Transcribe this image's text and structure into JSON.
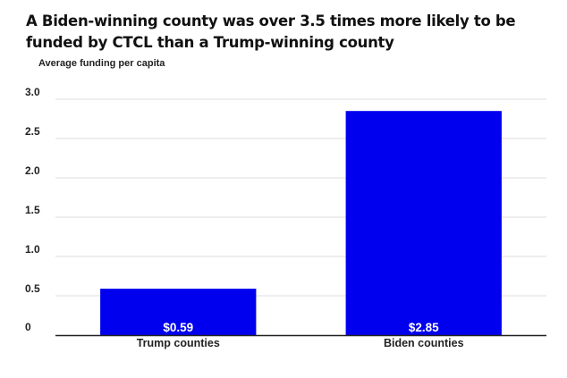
{
  "chart_data": {
    "type": "bar",
    "title": "A Biden-winning county was over 3.5 times more likely to be funded by CTCL than a Trump-winning county",
    "subtitle": "Average funding per capita",
    "xlabel": "",
    "ylabel": "",
    "categories": [
      "Trump counties",
      "Biden counties"
    ],
    "values": [
      0.59,
      2.85
    ],
    "data_labels": [
      "$0.59",
      "$2.85"
    ],
    "ylim": [
      0,
      3.0
    ],
    "yticks": [
      0,
      0.5,
      1.0,
      1.5,
      2.0,
      2.5,
      3.0
    ],
    "ytick_labels": [
      "0",
      "0.5",
      "1.0",
      "1.5",
      "2.0",
      "2.5",
      "3.0"
    ],
    "grid": true,
    "bar_color": "#0000ee",
    "grid_color": "#dddddd",
    "axis_color": "#222222"
  }
}
